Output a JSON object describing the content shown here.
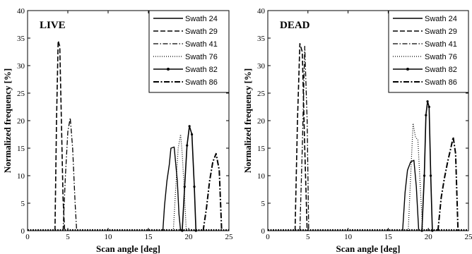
{
  "chart_data": [
    {
      "type": "line",
      "panel_label": "LIVE",
      "xlabel": "Scan angle [deg]",
      "ylabel": "Normalized frequency [%]",
      "xlim": [
        0,
        25
      ],
      "ylim": [
        0,
        40
      ],
      "xticks": [
        "0",
        "5",
        "10",
        "15",
        "20",
        "25"
      ],
      "yticks": [
        "0",
        "5",
        "10",
        "15",
        "20",
        "25",
        "30",
        "35",
        "40"
      ],
      "grid": false,
      "legend_position": "top-right",
      "series": [
        {
          "name": "Swath 24",
          "style": "solid",
          "x": [
            16.8,
            17.0,
            17.3,
            17.6,
            17.8,
            18.2,
            18.6,
            18.8,
            19.0
          ],
          "y": [
            0,
            4.5,
            9.0,
            12.0,
            15.0,
            15.2,
            9.0,
            3.0,
            0
          ]
        },
        {
          "name": "Swath 29",
          "style": "dashed",
          "x": [
            3.4,
            3.6,
            3.8,
            4.0,
            4.2,
            4.4,
            4.6
          ],
          "y": [
            0,
            20.0,
            34.5,
            33.5,
            20.0,
            6.0,
            0
          ]
        },
        {
          "name": "Swath 41",
          "style": "dashdot",
          "x": [
            4.4,
            4.7,
            5.0,
            5.3,
            5.6,
            5.9,
            6.1
          ],
          "y": [
            0,
            10.0,
            18.0,
            20.5,
            15.0,
            5.0,
            0
          ]
        },
        {
          "name": "Swath 76",
          "style": "dotted",
          "x": [
            18.1,
            18.4,
            18.7,
            19.0,
            19.2,
            19.5,
            19.7
          ],
          "y": [
            0,
            8.0,
            15.0,
            17.5,
            14.0,
            6.0,
            0
          ]
        },
        {
          "name": "Swath 82",
          "style": "solid-marker",
          "x": [
            19.2,
            19.5,
            19.8,
            20.1,
            20.4,
            20.7,
            20.9
          ],
          "y": [
            0,
            8.0,
            15.5,
            19.0,
            17.5,
            8.0,
            0
          ]
        },
        {
          "name": "Swath 86",
          "style": "dashdot-bold",
          "x": [
            21.8,
            22.2,
            22.6,
            23.0,
            23.4,
            23.8,
            24.1
          ],
          "y": [
            0,
            4.0,
            9.0,
            12.5,
            14.0,
            11.0,
            0
          ]
        }
      ]
    },
    {
      "type": "line",
      "panel_label": "DEAD",
      "xlabel": "Scan angle [deg]",
      "ylabel": "Normalized frequency [%]",
      "xlim": [
        0,
        25
      ],
      "ylim": [
        0,
        40
      ],
      "xticks": [
        "0",
        "5",
        "10",
        "15",
        "20",
        "25"
      ],
      "yticks": [
        "0",
        "5",
        "10",
        "15",
        "20",
        "25",
        "30",
        "35",
        "40"
      ],
      "grid": false,
      "legend_position": "top-right",
      "series": [
        {
          "name": "Swath 24",
          "style": "solid",
          "x": [
            16.8,
            17.1,
            17.4,
            17.8,
            18.2,
            18.5,
            18.8
          ],
          "y": [
            0,
            7.0,
            11.0,
            12.5,
            12.8,
            8.0,
            0
          ]
        },
        {
          "name": "Swath 29",
          "style": "dashed",
          "x": [
            3.4,
            3.7,
            4.0,
            4.3,
            4.6,
            4.9
          ],
          "y": [
            0,
            20.0,
            34.0,
            32.5,
            15.0,
            0
          ]
        },
        {
          "name": "Swath 41",
          "style": "dashdot",
          "x": [
            4.0,
            4.3,
            4.6,
            4.9,
            5.1
          ],
          "y": [
            0,
            15.0,
            33.5,
            20.0,
            0
          ]
        },
        {
          "name": "Swath 76",
          "style": "dotted",
          "x": [
            17.5,
            17.8,
            18.1,
            18.4,
            18.7,
            19.0,
            19.3
          ],
          "y": [
            0,
            10.0,
            19.5,
            17.0,
            16.5,
            8.0,
            0
          ]
        },
        {
          "name": "Swath 82",
          "style": "solid-marker",
          "x": [
            19.2,
            19.5,
            19.7,
            19.9,
            20.1,
            20.3,
            20.5
          ],
          "y": [
            0,
            10.0,
            21.0,
            23.5,
            22.5,
            10.0,
            0
          ]
        },
        {
          "name": "Swath 86",
          "style": "dashdot-bold",
          "x": [
            21.2,
            21.6,
            22.0,
            22.4,
            22.8,
            23.1,
            23.4,
            23.7
          ],
          "y": [
            0,
            6.0,
            9.5,
            12.5,
            15.0,
            17.0,
            14.0,
            0
          ]
        }
      ]
    }
  ]
}
